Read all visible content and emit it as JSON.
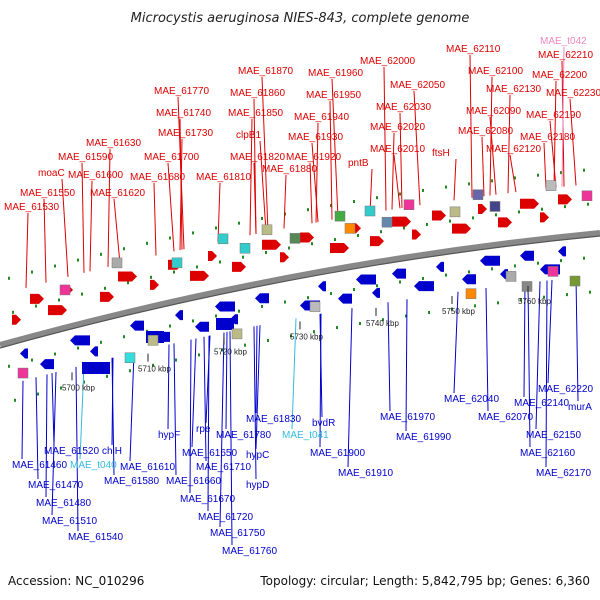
{
  "title": "Microcystis aeruginosa NIES-843, complete genome",
  "footer": {
    "accession": "Accession: NC_010296",
    "summary": "Topology: circular; Length: 5,842,795 bp; Genes: 6,360"
  },
  "colors": {
    "forward": "#dd0000",
    "reverse": "#0000cc",
    "trna_forward": "#ee88bb",
    "trna_reverse": "#33bbdd",
    "backbone": "#888888",
    "tick": "#228822"
  },
  "kbp_ticks": [
    {
      "label": "5700 kbp"
    },
    {
      "label": "5710 kbp"
    },
    {
      "label": "5720 kbp"
    },
    {
      "label": "5730 kbp"
    },
    {
      "label": "5740 kbp"
    },
    {
      "label": "5750 kbp"
    },
    {
      "label": "5760 kbp"
    }
  ],
  "top_labels": [
    {
      "text": "MAE_61530",
      "type": "gene"
    },
    {
      "text": "MAE_61550",
      "type": "gene"
    },
    {
      "text": "moaC",
      "type": "gene"
    },
    {
      "text": "MAE_61600",
      "type": "gene"
    },
    {
      "text": "MAE_61590",
      "type": "gene"
    },
    {
      "text": "MAE_61620",
      "type": "gene"
    },
    {
      "text": "MAE_61630",
      "type": "gene"
    },
    {
      "text": "MAE_61680",
      "type": "gene"
    },
    {
      "text": "MAE_61700",
      "type": "gene"
    },
    {
      "text": "MAE_61730",
      "type": "gene"
    },
    {
      "text": "MAE_61740",
      "type": "gene"
    },
    {
      "text": "MAE_61770",
      "type": "gene"
    },
    {
      "text": "MAE_61810",
      "type": "gene"
    },
    {
      "text": "MAE_61820",
      "type": "gene"
    },
    {
      "text": "clpB1",
      "type": "gene"
    },
    {
      "text": "MAE_61850",
      "type": "gene"
    },
    {
      "text": "MAE_61860",
      "type": "gene"
    },
    {
      "text": "MAE_61870",
      "type": "gene"
    },
    {
      "text": "MAE_61880",
      "type": "gene"
    },
    {
      "text": "MAE_61920",
      "type": "gene"
    },
    {
      "text": "MAE_61930",
      "type": "gene"
    },
    {
      "text": "MAE_61940",
      "type": "gene"
    },
    {
      "text": "MAE_61950",
      "type": "gene"
    },
    {
      "text": "MAE_61960",
      "type": "gene"
    },
    {
      "text": "pntB",
      "type": "gene"
    },
    {
      "text": "MAE_62000",
      "type": "gene"
    },
    {
      "text": "MAE_62010",
      "type": "gene"
    },
    {
      "text": "MAE_62020",
      "type": "gene"
    },
    {
      "text": "MAE_62030",
      "type": "gene"
    },
    {
      "text": "MAE_62050",
      "type": "gene"
    },
    {
      "text": "ftsH",
      "type": "gene"
    },
    {
      "text": "MAE_62080",
      "type": "gene"
    },
    {
      "text": "MAE_62090",
      "type": "gene"
    },
    {
      "text": "MAE_62100",
      "type": "gene"
    },
    {
      "text": "MAE_62110",
      "type": "gene"
    },
    {
      "text": "MAE_62120",
      "type": "gene"
    },
    {
      "text": "MAE_62130",
      "type": "gene"
    },
    {
      "text": "MAE_62180",
      "type": "gene"
    },
    {
      "text": "MAE_62190",
      "type": "gene"
    },
    {
      "text": "MAE_62200",
      "type": "gene"
    },
    {
      "text": "MAE_62210",
      "type": "gene"
    },
    {
      "text": "MAE_62230",
      "type": "gene"
    },
    {
      "text": "MAE_t042",
      "type": "trna"
    }
  ],
  "bottom_labels": [
    {
      "text": "MAE_61520",
      "type": "gene"
    },
    {
      "text": "MAE_61460",
      "type": "gene"
    },
    {
      "text": "MAE_t040",
      "type": "trna"
    },
    {
      "text": "MAE_61470",
      "type": "gene"
    },
    {
      "text": "MAE_61480",
      "type": "gene"
    },
    {
      "text": "MAE_61510",
      "type": "gene"
    },
    {
      "text": "MAE_61540",
      "type": "gene"
    },
    {
      "text": "chlH",
      "type": "gene"
    },
    {
      "text": "MAE_61610",
      "type": "gene"
    },
    {
      "text": "MAE_61580",
      "type": "gene"
    },
    {
      "text": "hypF",
      "type": "gene"
    },
    {
      "text": "MAE_61650",
      "type": "gene"
    },
    {
      "text": "MAE_61660",
      "type": "gene"
    },
    {
      "text": "MAE_61670",
      "type": "gene"
    },
    {
      "text": "rpe",
      "type": "gene"
    },
    {
      "text": "MAE_61710",
      "type": "gene"
    },
    {
      "text": "MAE_61720",
      "type": "gene"
    },
    {
      "text": "MAE_61750",
      "type": "gene"
    },
    {
      "text": "MAE_61760",
      "type": "gene"
    },
    {
      "text": "MAE_61780",
      "type": "gene"
    },
    {
      "text": "hypC",
      "type": "gene"
    },
    {
      "text": "hypD",
      "type": "gene"
    },
    {
      "text": "MAE_61830",
      "type": "gene"
    },
    {
      "text": "MAE_t041",
      "type": "trna"
    },
    {
      "text": "bvdR",
      "type": "gene"
    },
    {
      "text": "MAE_61900",
      "type": "gene"
    },
    {
      "text": "MAE_61910",
      "type": "gene"
    },
    {
      "text": "MAE_61970",
      "type": "gene"
    },
    {
      "text": "MAE_61990",
      "type": "gene"
    },
    {
      "text": "MAE_62040",
      "type": "gene"
    },
    {
      "text": "MAE_62070",
      "type": "gene"
    },
    {
      "text": "MAE_62140",
      "type": "gene"
    },
    {
      "text": "MAE_62150",
      "type": "gene"
    },
    {
      "text": "MAE_62160",
      "type": "gene"
    },
    {
      "text": "MAE_62170",
      "type": "gene"
    },
    {
      "text": "MAE_62220",
      "type": "gene"
    },
    {
      "text": "murA",
      "type": "gene"
    }
  ]
}
